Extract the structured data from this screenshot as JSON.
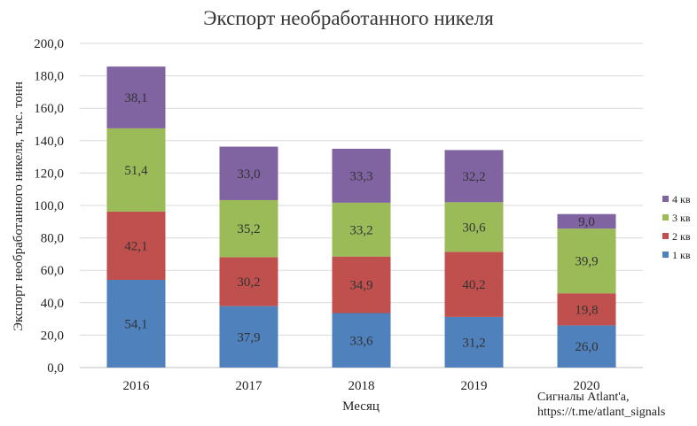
{
  "chart_data": {
    "type": "bar",
    "stacked": true,
    "title": "Экспорт необработанного никеля",
    "xlabel": "Месяц",
    "ylabel": "Экспорт необработанного никеля, тыс. тонн",
    "categories": [
      "2016",
      "2017",
      "2018",
      "2019",
      "2020"
    ],
    "ylim": [
      0,
      200
    ],
    "ytick_step": 20,
    "ytick_labels": [
      "0,0",
      "20,0",
      "40,0",
      "60,0",
      "80,0",
      "100,0",
      "120,0",
      "140,0",
      "160,0",
      "180,0",
      "200,0"
    ],
    "grid": true,
    "legend_position": "right",
    "series": [
      {
        "name": "1 кв",
        "color": "#4F81BD",
        "values": [
          54.1,
          37.9,
          33.6,
          31.2,
          26.0
        ],
        "labels": [
          "54,1",
          "37,9",
          "33,6",
          "31,2",
          "26,0"
        ]
      },
      {
        "name": "2 кв",
        "color": "#C0504D",
        "values": [
          42.1,
          30.2,
          34.9,
          40.2,
          19.8
        ],
        "labels": [
          "42,1",
          "30,2",
          "34,9",
          "40,2",
          "19,8"
        ]
      },
      {
        "name": "3 кв",
        "color": "#9BBB59",
        "values": [
          51.4,
          35.2,
          33.2,
          30.6,
          39.9
        ],
        "labels": [
          "51,4",
          "35,2",
          "33,2",
          "30,6",
          "39,9"
        ]
      },
      {
        "name": "4 кв",
        "color": "#8064A2",
        "values": [
          38.1,
          33.0,
          33.3,
          32.2,
          9.0
        ],
        "labels": [
          "38,1",
          "33,0",
          "33,3",
          "32,2",
          "9,0"
        ]
      }
    ]
  },
  "watermark": {
    "line1": "Сигналы Atlant'a,",
    "line2": "https://t.me/atlant_signals"
  }
}
